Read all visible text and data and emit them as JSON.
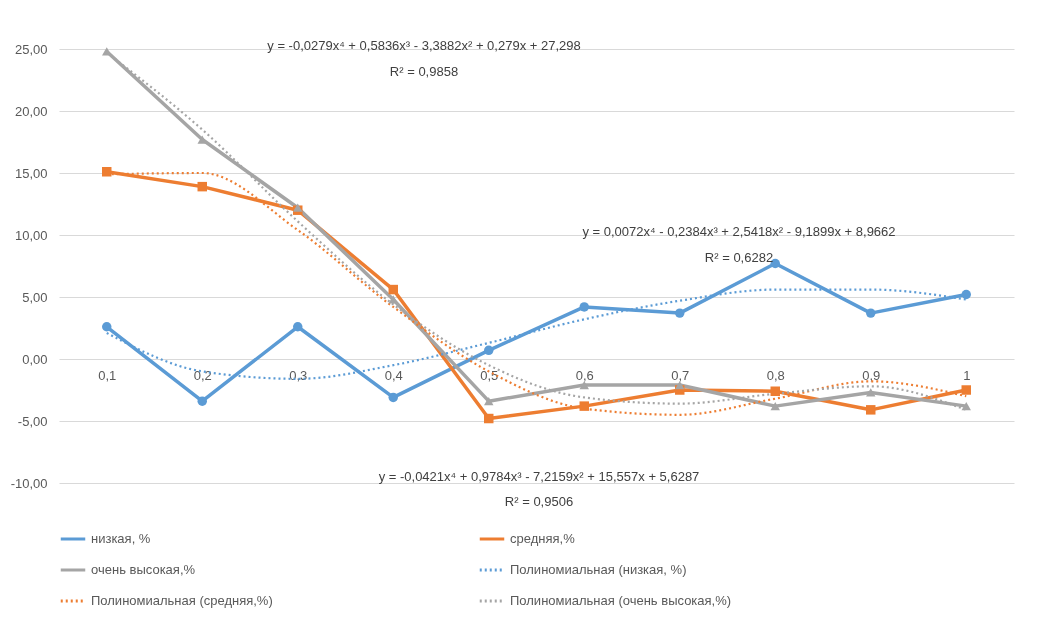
{
  "chart_data": {
    "type": "line",
    "categories": [
      "0,1",
      "0,2",
      "0,3",
      "0,4",
      "0,5",
      "0,6",
      "0,7",
      "0,8",
      "0,9",
      "1"
    ],
    "ylim": [
      -10,
      25
    ],
    "yticks": [
      {
        "value": -10,
        "label": "-10,00"
      },
      {
        "value": -5,
        "label": "-5,00"
      },
      {
        "value": 0,
        "label": "0,00"
      },
      {
        "value": 5,
        "label": "5,00"
      },
      {
        "value": 10,
        "label": "10,00"
      },
      {
        "value": 15,
        "label": "15,00"
      },
      {
        "value": 20,
        "label": "20,00"
      },
      {
        "value": 25,
        "label": "25,00"
      }
    ],
    "grid": "y",
    "legend": "bottom",
    "series": [
      {
        "name": "низкая, %",
        "color": "#5b9bd5",
        "marker": "circle",
        "line_style": "solid",
        "values": [
          2.6,
          -3.4,
          2.6,
          -3.1,
          0.7,
          4.2,
          3.7,
          7.7,
          3.7,
          5.2
        ]
      },
      {
        "name": "средняя,%",
        "color": "#ed7d31",
        "marker": "square",
        "line_style": "solid",
        "values": [
          15.1,
          13.9,
          12.0,
          5.6,
          -4.8,
          -3.8,
          -2.5,
          -2.6,
          -4.1,
          -2.5
        ]
      },
      {
        "name": "очень высокая,%",
        "color": "#a5a5a5",
        "marker": "triangle",
        "line_style": "solid",
        "values": [
          24.8,
          17.7,
          12.2,
          4.8,
          -3.4,
          -2.1,
          -2.1,
          -3.8,
          -2.7,
          -3.8
        ]
      },
      {
        "name": "Полиномиальная (низкая, %)",
        "color": "#5b9bd5",
        "marker": "none",
        "line_style": "dotted",
        "values": [
          2.1,
          -1.0,
          -1.6,
          -0.5,
          1.3,
          3.2,
          4.7,
          5.6,
          5.6,
          4.8
        ]
      },
      {
        "name": "Полиномиальная (средняя,%)",
        "color": "#ed7d31",
        "marker": "none",
        "line_style": "dotted",
        "values": [
          14.9,
          15.0,
          10.4,
          4.2,
          -1.0,
          -4.0,
          -4.5,
          -3.2,
          -1.8,
          -3.0
        ]
      },
      {
        "name": "Полиномиальная (очень высокая,%)",
        "color": "#a5a5a5",
        "marker": "none",
        "line_style": "dotted",
        "values": [
          24.7,
          18.5,
          11.1,
          4.4,
          -0.5,
          -3.1,
          -3.6,
          -2.8,
          -2.2,
          -4.1
        ]
      }
    ],
    "annotations": [
      "y = -0,0279x⁴ + 0,5836x³ - 3,3882x² + 0,279x + 27,298",
      "R² = 0,9858",
      "y = 0,0072x⁴ - 0,2384x³ + 2,5418x² - 9,1899x + 8,9662",
      "R² = 0,6282",
      "y = -0,0421x⁴ + 0,9784x³ - 7,2159x² + 15,557x + 5,6287",
      "R² = 0,9506"
    ]
  }
}
